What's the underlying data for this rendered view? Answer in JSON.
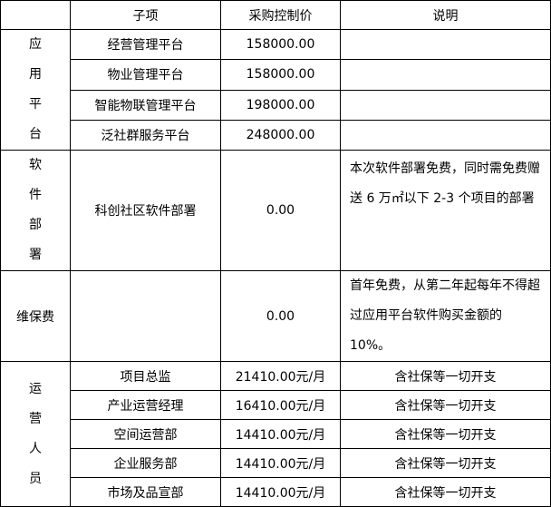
{
  "header": {
    "blank": "",
    "item": "子项",
    "price": "采购控制价",
    "note": "说明"
  },
  "groups": {
    "platform": {
      "label": "应用平台",
      "rows": [
        {
          "item": "经营管理平台",
          "price": "158000.00",
          "note": ""
        },
        {
          "item": "物业管理平台",
          "price": "158000.00",
          "note": ""
        },
        {
          "item": "智能物联管理平台",
          "price": "198000.00",
          "note": ""
        },
        {
          "item": "泛社群服务平台",
          "price": "248000.00",
          "note": ""
        }
      ]
    },
    "deploy": {
      "label": "软件部署",
      "item": "科创社区软件部署",
      "price": "0.00",
      "note": "本次软件部署免费，同时需免费赠送 6 万㎡以下 2-3 个项目的部署"
    },
    "maintenance": {
      "label": "维保费",
      "item": "",
      "price": "0.00",
      "note": "首年免费，从第二年起每年不得超过应用平台软件购买金额的 10%。"
    },
    "staff": {
      "label": "运营人员",
      "rows": [
        {
          "item": "项目总监",
          "price": "21410.00元/月",
          "note": "含社保等一切开支"
        },
        {
          "item": "产业运营经理",
          "price": "16410.00元/月",
          "note": "含社保等一切开支"
        },
        {
          "item": "空间运营部",
          "price": "14410.00元/月",
          "note": "含社保等一切开支"
        },
        {
          "item": "企业服务部",
          "price": "14410.00元/月",
          "note": "含社保等一切开支"
        },
        {
          "item": "市场及品宣部",
          "price": "14410.00元/月",
          "note": "含社保等一切开支"
        }
      ]
    }
  }
}
